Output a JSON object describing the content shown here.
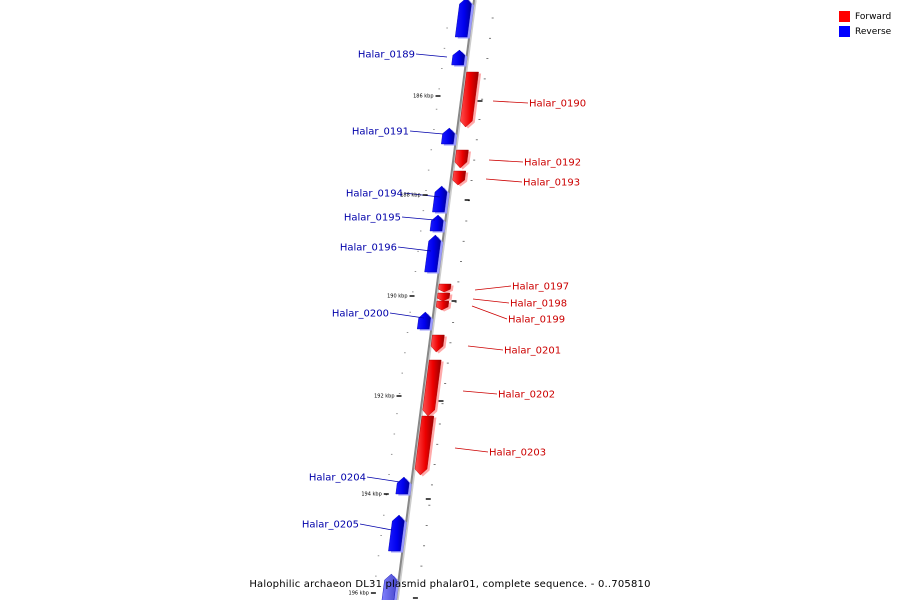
{
  "title": "Halophilic archaeon DL31 plasmid phalar01, complete sequence. - 0..705810",
  "legend": [
    {
      "label": "Forward",
      "color": "#ff0000"
    },
    {
      "label": "Reverse",
      "color": "#0000ff"
    }
  ],
  "colors": {
    "forward": "#ff0000",
    "reverse": "#0000ff",
    "forward_label": "#cc0000",
    "reverse_label": "#0000aa",
    "backbone": "#888888"
  },
  "kbp_marks": [
    "186 kbp",
    "188 kbp",
    "190 kbp",
    "192 kbp",
    "194 kbp",
    "196 kbp"
  ],
  "genes": [
    {
      "name": "Halar_0189",
      "strand": "reverse"
    },
    {
      "name": "Halar_0190",
      "strand": "forward"
    },
    {
      "name": "Halar_0191",
      "strand": "reverse"
    },
    {
      "name": "Halar_0192",
      "strand": "forward"
    },
    {
      "name": "Halar_0193",
      "strand": "forward"
    },
    {
      "name": "Halar_0194",
      "strand": "reverse"
    },
    {
      "name": "Halar_0195",
      "strand": "reverse"
    },
    {
      "name": "Halar_0196",
      "strand": "reverse"
    },
    {
      "name": "Halar_0197",
      "strand": "forward"
    },
    {
      "name": "Halar_0198",
      "strand": "forward"
    },
    {
      "name": "Halar_0199",
      "strand": "forward"
    },
    {
      "name": "Halar_0200",
      "strand": "reverse"
    },
    {
      "name": "Halar_0201",
      "strand": "forward"
    },
    {
      "name": "Halar_0202",
      "strand": "forward"
    },
    {
      "name": "Halar_0203",
      "strand": "forward"
    },
    {
      "name": "Halar_0204",
      "strand": "reverse"
    },
    {
      "name": "Halar_0205",
      "strand": "reverse"
    }
  ]
}
